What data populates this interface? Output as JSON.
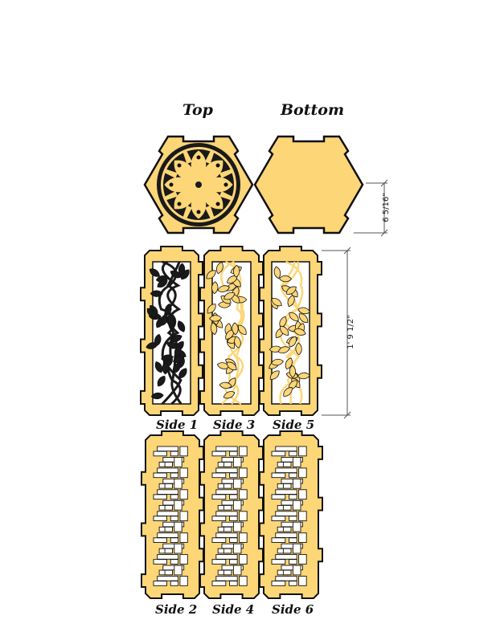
{
  "headings": {
    "top": "Top",
    "bottom": "Bottom"
  },
  "side_labels": {
    "side1": "Side 1",
    "side2": "Side 2",
    "side3": "Side 3",
    "side4": "Side 4",
    "side5": "Side 5",
    "side6": "Side 6"
  },
  "dimensions": {
    "hex_height": "6 5/16\"",
    "panel_height": "1' 9 1/2\""
  },
  "colors": {
    "wood": "#FCD677",
    "outline": "#111111",
    "cutout": "#ffffff",
    "dim_line": "#555555"
  }
}
